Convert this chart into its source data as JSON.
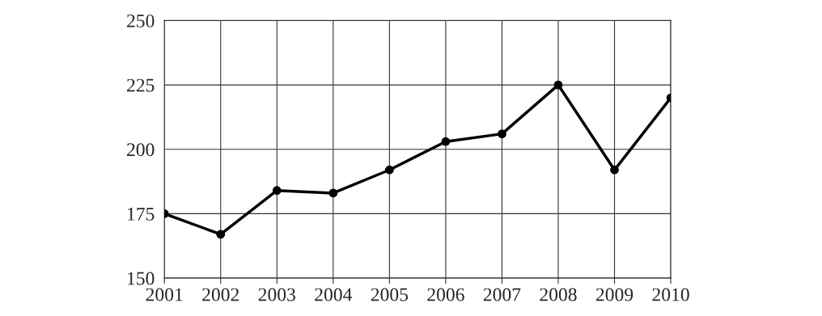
{
  "chart_data": {
    "type": "line",
    "x": [
      2001,
      2002,
      2003,
      2004,
      2005,
      2006,
      2007,
      2008,
      2009,
      2010
    ],
    "series": [
      {
        "color": "#000000",
        "values": [
          175,
          167,
          184,
          183,
          192,
          203,
          206,
          225,
          192,
          220
        ]
      }
    ],
    "xlim": [
      2001,
      2010
    ],
    "xticks": [
      2001,
      2002,
      2003,
      2004,
      2005,
      2006,
      2007,
      2008,
      2009,
      2010
    ],
    "ylim": [
      150,
      250
    ],
    "yticks": [
      150,
      175,
      200,
      225,
      250
    ],
    "grid": true,
    "marker": "circle",
    "line_style": "solid"
  }
}
